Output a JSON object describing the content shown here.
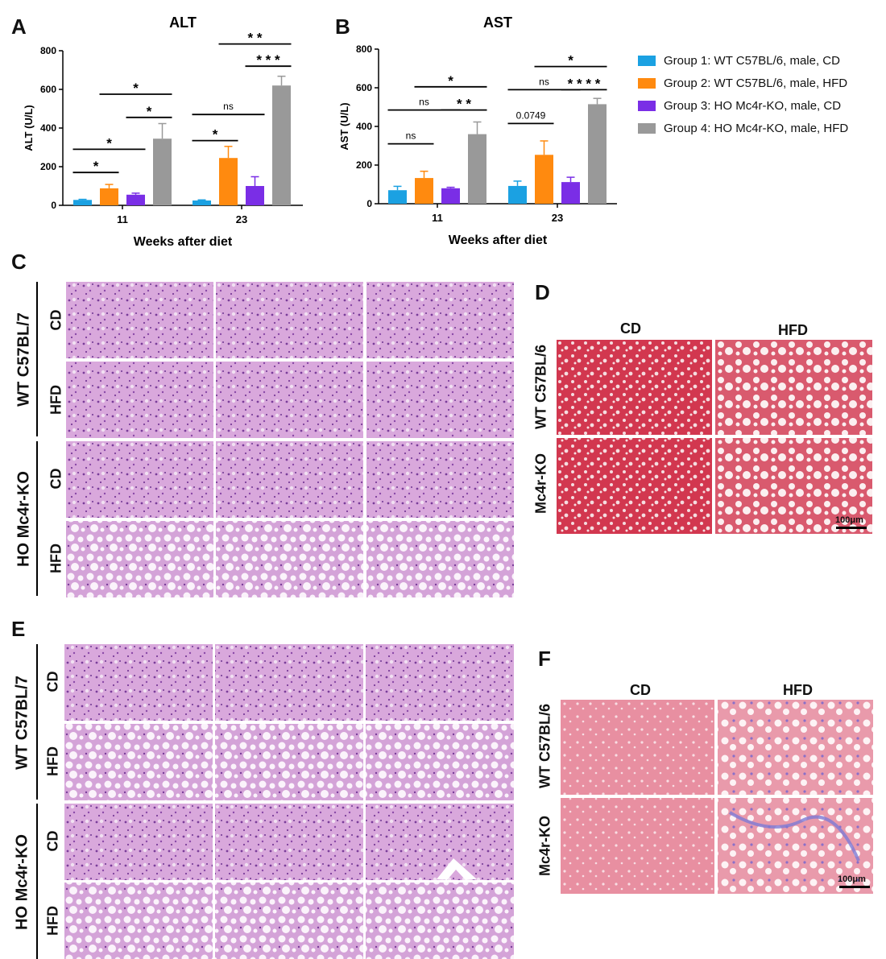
{
  "panel_letters": {
    "A": "A",
    "B": "B",
    "C": "C",
    "D": "D",
    "E": "E",
    "F": "F"
  },
  "legend": {
    "items": [
      {
        "label": "Group 1: WT C57BL/6, male, CD",
        "color": "#1ba1e2"
      },
      {
        "label": "Group 2: WT C57BL/6, male, HFD",
        "color": "#ff8a0f"
      },
      {
        "label": "Group 3: HO Mc4r-KO, male, CD",
        "color": "#7a2ee6"
      },
      {
        "label": "Group 4: HO Mc4r-KO, male, HFD",
        "color": "#999999"
      }
    ]
  },
  "chart_data": [
    {
      "type": "bar",
      "title": "ALT",
      "xlabel": "Weeks after diet",
      "ylabel": "ALT (U/L)",
      "ylim": [
        0,
        800
      ],
      "yticks": [
        "0",
        "200",
        "400",
        "600",
        "800"
      ],
      "categories": [
        "11",
        "23"
      ],
      "series": [
        {
          "name": "Group 1: WT C57BL/6, male, CD",
          "values": [
            28,
            25
          ],
          "errors": [
            3,
            3
          ]
        },
        {
          "name": "Group 2: WT C57BL/6, male, HFD",
          "values": [
            88,
            245
          ],
          "errors": [
            20,
            60
          ]
        },
        {
          "name": "Group 3: HO Mc4r-KO, male, CD",
          "values": [
            55,
            100
          ],
          "errors": [
            8,
            48
          ]
        },
        {
          "name": "Group 4: HO Mc4r-KO, male, HFD",
          "values": [
            345,
            620
          ],
          "errors": [
            78,
            48
          ]
        }
      ],
      "annotations": [
        {
          "label": "*",
          "category": "11",
          "from": 0,
          "to": 1,
          "y": 170
        },
        {
          "label": "*",
          "category": "11",
          "from": 0,
          "to": 2,
          "y": 290
        },
        {
          "label": "*",
          "category": "11",
          "from": 1,
          "to": 3,
          "y": 575
        },
        {
          "label": "*",
          "category": "11",
          "from": 2,
          "to": 3,
          "y": 455
        },
        {
          "label": "*",
          "category": "23",
          "from": 0,
          "to": 1,
          "y": 335
        },
        {
          "label": "ns",
          "category": "23",
          "from": 0,
          "to": 2,
          "y": 470
        },
        {
          "label": "* *",
          "category": "23",
          "from": 1,
          "to": 3,
          "y": 835
        },
        {
          "label": "* * *",
          "category": "23",
          "from": 2,
          "to": 3,
          "y": 720
        }
      ]
    },
    {
      "type": "bar",
      "title": "AST",
      "xlabel": "Weeks after diet",
      "ylabel": "AST (U/L)",
      "ylim": [
        0,
        800
      ],
      "yticks": [
        "0",
        "200",
        "400",
        "600",
        "800"
      ],
      "categories": [
        "11",
        "23"
      ],
      "series": [
        {
          "name": "Group 1: WT C57BL/6, male, CD",
          "values": [
            70,
            92
          ],
          "errors": [
            20,
            25
          ]
        },
        {
          "name": "Group 2: WT C57BL/6, male, HFD",
          "values": [
            133,
            253
          ],
          "errors": [
            35,
            72
          ]
        },
        {
          "name": "Group 3: HO Mc4r-KO, male, CD",
          "values": [
            80,
            112
          ],
          "errors": [
            5,
            25
          ]
        },
        {
          "name": "Group 4: HO Mc4r-KO, male, HFD",
          "values": [
            360,
            515
          ],
          "errors": [
            63,
            30
          ]
        }
      ],
      "annotations": [
        {
          "label": "ns",
          "category": "11",
          "from": 0,
          "to": 1,
          "y": 310
        },
        {
          "label": "ns",
          "category": "11",
          "from": 0,
          "to": 2,
          "y": 485
        },
        {
          "label": "* *",
          "category": "11",
          "from": 2,
          "to": 3,
          "y": 485
        },
        {
          "label": "*",
          "category": "11",
          "from": 1,
          "to": 3,
          "y": 605
        },
        {
          "label": "0.0749",
          "category": "23",
          "from": 0,
          "to": 1,
          "y": 415
        },
        {
          "label": "ns",
          "category": "23",
          "from": 0,
          "to": 2,
          "y": 590
        },
        {
          "label": "* * * *",
          "category": "23",
          "from": 2,
          "to": 3,
          "y": 590
        },
        {
          "label": "*",
          "category": "23",
          "from": 1,
          "to": 3,
          "y": 710
        }
      ]
    }
  ],
  "panelC": {
    "groups": [
      "WT C57BL/7",
      "HO Mc4r-KO"
    ],
    "rows": [
      "CD",
      "HFD",
      "CD",
      "HFD"
    ]
  },
  "panelD": {
    "cols": [
      "CD",
      "HFD"
    ],
    "rows": [
      "WT C57BL/6",
      "Mc4r-KO"
    ],
    "scalebar": "100μm"
  },
  "panelE": {
    "groups": [
      "WT C57BL/7",
      "HO Mc4r-KO"
    ],
    "rows": [
      "CD",
      "HFD",
      "CD",
      "HFD"
    ]
  },
  "panelF": {
    "cols": [
      "CD",
      "HFD"
    ],
    "rows": [
      "WT C57BL/6",
      "Mc4r-KO"
    ],
    "scalebar": "100μm"
  }
}
